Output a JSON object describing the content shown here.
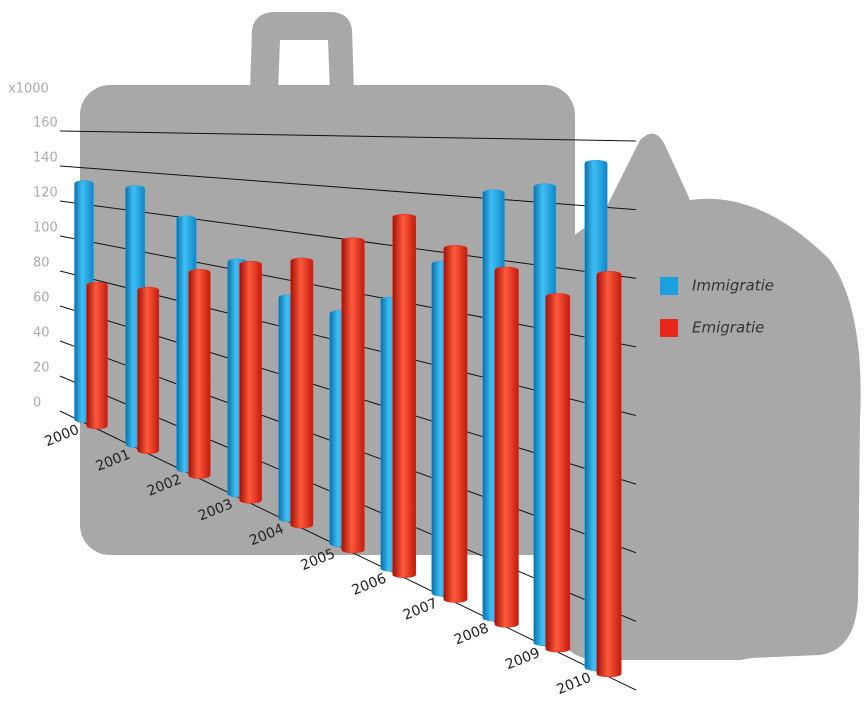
{
  "chart_data": {
    "type": "bar",
    "y_label": "x1000",
    "categories": [
      "2000",
      "2001",
      "2002",
      "2003",
      "2004",
      "2005",
      "2006",
      "2007",
      "2008",
      "2009",
      "2010"
    ],
    "series": [
      {
        "name": "Immigratie",
        "color": "#1aa0e0",
        "values": [
          133,
          133,
          121,
          105,
          94,
          92,
          101,
          117,
          143,
          146,
          154
        ]
      },
      {
        "name": "Emigratie",
        "color": "#e8271a",
        "values": [
          79,
          83,
          97,
          105,
          110,
          121,
          132,
          123,
          118,
          112,
          121
        ]
      }
    ],
    "ylim": [
      0,
      160
    ],
    "yticks": [
      0,
      20,
      40,
      60,
      80,
      100,
      120,
      140,
      160
    ],
    "grid": true,
    "legend": "right"
  }
}
